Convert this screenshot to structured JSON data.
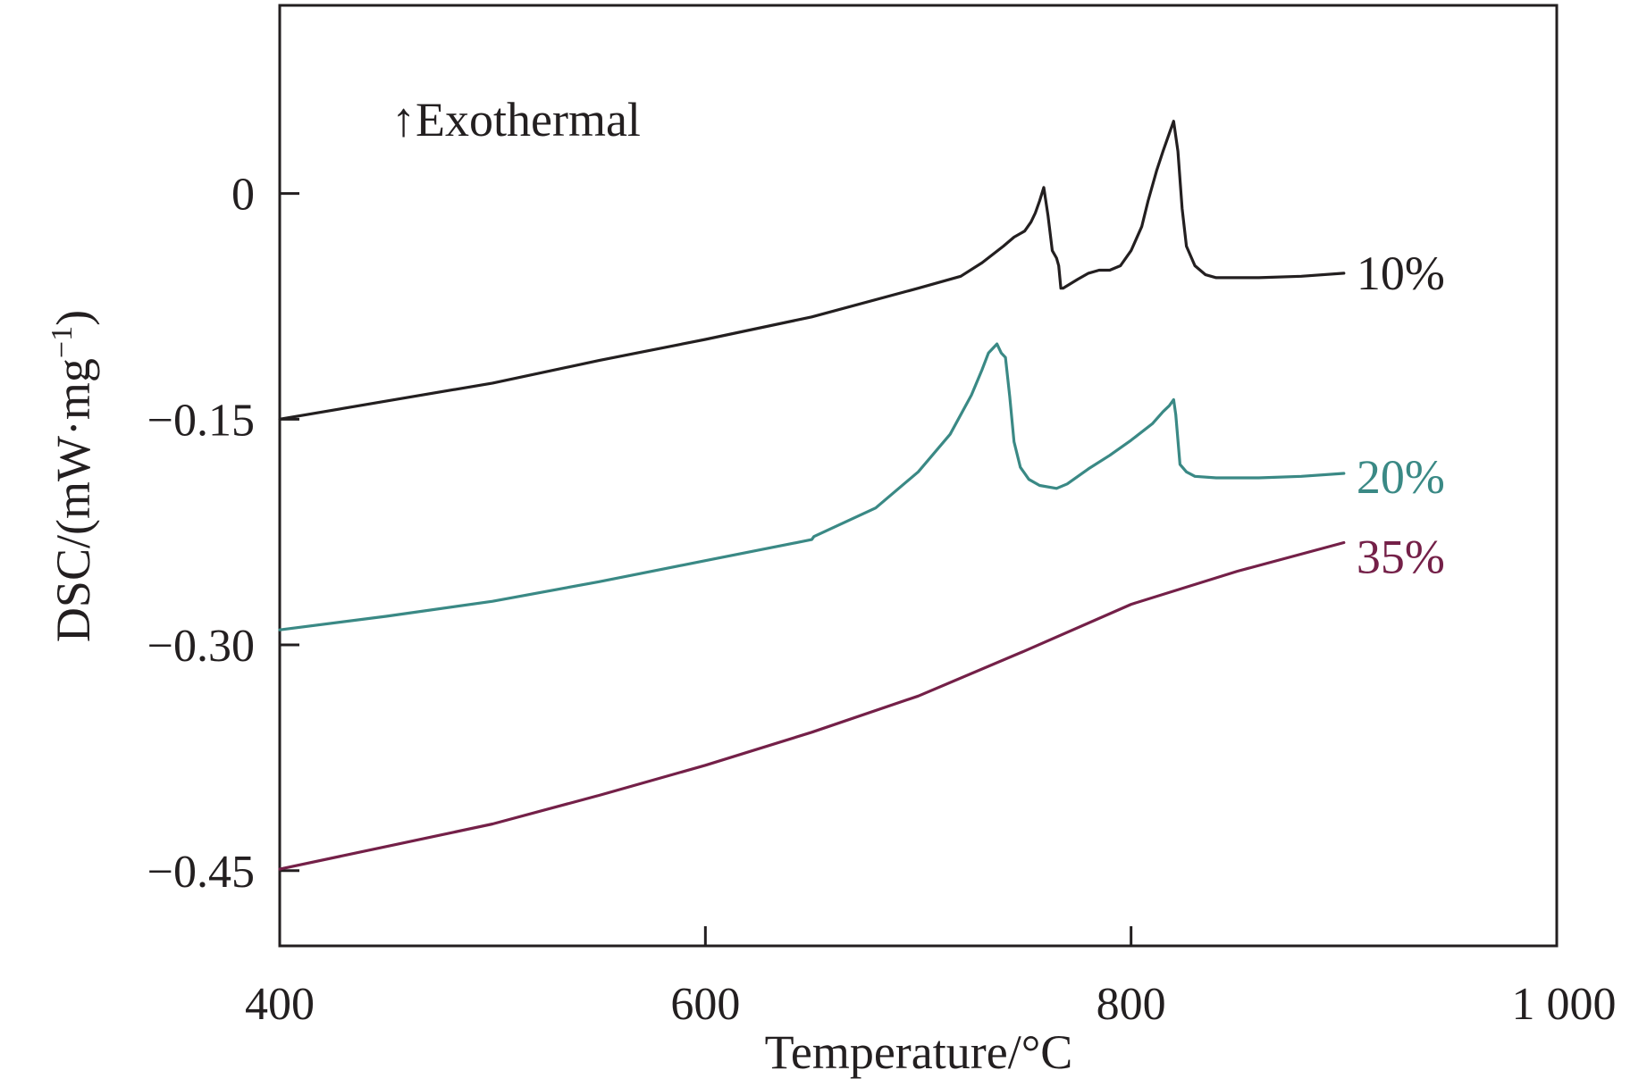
{
  "chart_data": {
    "type": "line",
    "title": "",
    "xlabel": "Temperature/°C",
    "ylabel": "DSC/(mW·mg",
    "ylabel_superscript": "−1",
    "ylabel_close": ")",
    "xlim": [
      400,
      1000
    ],
    "ylim": [
      -0.5,
      0.125
    ],
    "x_ticks": [
      400,
      600,
      800,
      1000
    ],
    "x_tick_labels": [
      "400",
      "600",
      "800",
      "1 000"
    ],
    "y_ticks": [
      0,
      -0.15,
      -0.3,
      -0.45
    ],
    "y_tick_labels": [
      "0",
      "−0.15",
      "−0.30",
      "−0.45"
    ],
    "grid": false,
    "legend": "inline labels at line ends",
    "annotation": "↑Exothermal",
    "series": [
      {
        "name": "10%",
        "color": "#231f20",
        "x": [
          400,
          450,
          500,
          550,
          600,
          650,
          700,
          720,
          730,
          740,
          745,
          750,
          753,
          755,
          757,
          759,
          761,
          763,
          765,
          766,
          767,
          768,
          775,
          780,
          785,
          790,
          795,
          800,
          805,
          808,
          812,
          815,
          818,
          820,
          822,
          824,
          826,
          830,
          835,
          840,
          860,
          880,
          900
        ],
        "y": [
          -0.15,
          -0.138,
          -0.126,
          -0.111,
          -0.097,
          -0.082,
          -0.063,
          -0.055,
          -0.046,
          -0.035,
          -0.029,
          -0.025,
          -0.019,
          -0.013,
          -0.005,
          0.004,
          -0.015,
          -0.038,
          -0.043,
          -0.048,
          -0.063,
          -0.063,
          -0.057,
          -0.053,
          -0.051,
          -0.051,
          -0.048,
          -0.038,
          -0.022,
          -0.005,
          0.015,
          0.028,
          0.04,
          0.048,
          0.028,
          -0.01,
          -0.035,
          -0.048,
          -0.054,
          -0.056,
          -0.056,
          -0.055,
          -0.053
        ],
        "label": "10%"
      },
      {
        "name": "20%",
        "color": "#3a8985",
        "x": [
          400,
          450,
          500,
          550,
          600,
          650,
          651,
          680,
          700,
          715,
          725,
          730,
          733,
          735,
          737,
          739,
          741,
          743,
          745,
          748,
          752,
          757,
          765,
          770,
          780,
          790,
          800,
          810,
          815,
          818,
          820,
          821,
          823,
          826,
          830,
          840,
          860,
          880,
          900
        ],
        "y": [
          -0.29,
          -0.281,
          -0.271,
          -0.258,
          -0.244,
          -0.23,
          -0.228,
          -0.209,
          -0.185,
          -0.16,
          -0.134,
          -0.117,
          -0.106,
          -0.103,
          -0.1,
          -0.106,
          -0.109,
          -0.135,
          -0.165,
          -0.182,
          -0.19,
          -0.194,
          -0.196,
          -0.193,
          -0.183,
          -0.174,
          -0.164,
          -0.153,
          -0.145,
          -0.141,
          -0.137,
          -0.147,
          -0.18,
          -0.185,
          -0.188,
          -0.189,
          -0.189,
          -0.188,
          -0.186
        ],
        "label": "20%"
      },
      {
        "name": "35%",
        "color": "#742048",
        "x": [
          400,
          450,
          500,
          550,
          600,
          650,
          700,
          750,
          800,
          850,
          900
        ],
        "y": [
          -0.449,
          -0.434,
          -0.419,
          -0.4,
          -0.38,
          -0.358,
          -0.334,
          -0.304,
          -0.273,
          -0.251,
          -0.232
        ],
        "label": "35%"
      }
    ]
  }
}
